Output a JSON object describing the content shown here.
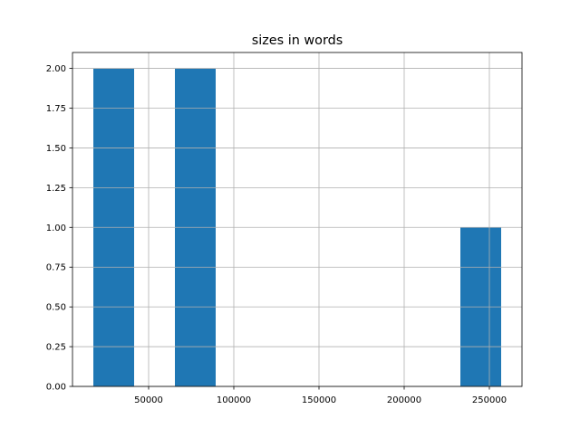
{
  "chart_data": {
    "type": "bar",
    "subtype": "histogram",
    "title": "sizes in words",
    "xlabel": "",
    "ylabel": "",
    "bin_edges": [
      17553,
      41489,
      65425,
      89361,
      113298,
      137234,
      161170,
      185106,
      209042,
      232979,
      256915
    ],
    "counts": [
      2,
      0,
      2,
      0,
      0,
      0,
      0,
      0,
      0,
      1
    ],
    "xlim": [
      5319,
      269149
    ],
    "ylim": [
      0,
      2.1
    ],
    "xticks": [
      50000,
      100000,
      150000,
      200000,
      250000
    ],
    "xtick_labels": [
      "50000",
      "100000",
      "150000",
      "200000",
      "250000"
    ],
    "yticks": [
      0,
      0.25,
      0.5,
      0.75,
      1.0,
      1.25,
      1.5,
      1.75,
      2.0
    ],
    "ytick_labels": [
      "0.00",
      "0.25",
      "0.50",
      "0.75",
      "1.00",
      "1.25",
      "1.50",
      "1.75",
      "2.00"
    ],
    "grid": true,
    "bar_color": "#1f77b4",
    "grid_color": "#b0b0b0"
  }
}
